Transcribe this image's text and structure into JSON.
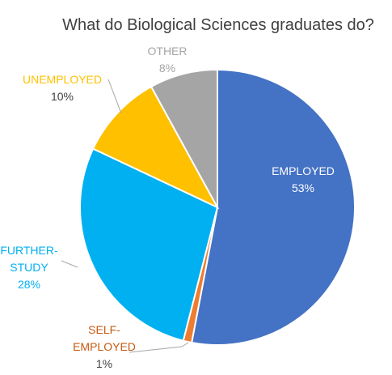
{
  "chart_data": {
    "type": "pie",
    "title": "What do Biological Sciences graduates do?",
    "slices": [
      {
        "name": "EMPLOYED",
        "name_lines": [
          "EMPLOYED"
        ],
        "value": 53,
        "percent_label": "53%",
        "color": "#4472C4",
        "label_color": "#FFFFFF",
        "label_percent_color": "#FFFFFF"
      },
      {
        "name": "SELF-EMPLOYED",
        "name_lines": [
          "SELF-",
          "EMPLOYED"
        ],
        "value": 1,
        "percent_label": "1%",
        "color": "#ED7D31",
        "label_color": "#C55A11",
        "label_percent_color": "#404040"
      },
      {
        "name": "FURTHER-STUDY",
        "name_lines": [
          "FURTHER-",
          "STUDY"
        ],
        "value": 28,
        "percent_label": "28%",
        "color": "#00B0F0",
        "label_color": "#00B0F0",
        "label_percent_color": "#00B0F0"
      },
      {
        "name": "UNEMPLOYED",
        "name_lines": [
          "UNEMPLOYED"
        ],
        "value": 10,
        "percent_label": "10%",
        "color": "#FFC000",
        "label_color": "#FFC000",
        "label_percent_color": "#404040"
      },
      {
        "name": "OTHER",
        "name_lines": [
          "OTHER"
        ],
        "value": 8,
        "percent_label": "8%",
        "color": "#A5A5A5",
        "label_color": "#A5A5A5",
        "label_percent_color": "#A5A5A5"
      }
    ],
    "legend": "none"
  }
}
